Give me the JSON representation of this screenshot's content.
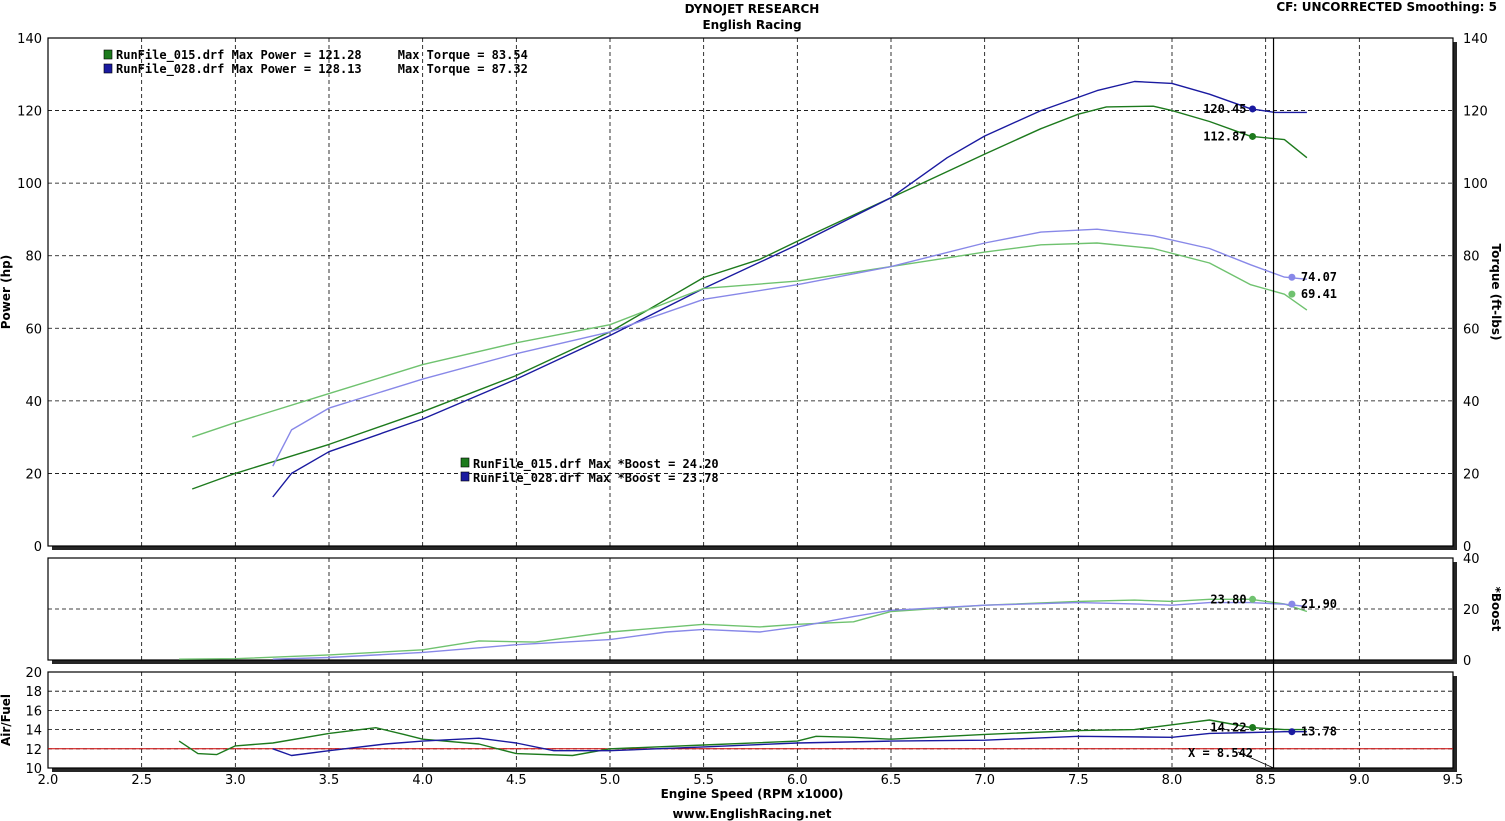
{
  "header": {
    "title": "DYNOJET RESEARCH",
    "subtitle": "English Racing",
    "corner": "CF: UNCORRECTED  Smoothing: 5",
    "footer": "www.EnglishRacing.net"
  },
  "colors": {
    "run015_power": "#1d7a1d",
    "run028_power": "#1a1aa0",
    "run015_torque": "#6fc26f",
    "run028_torque": "#8888e8",
    "afr_reference": "#cc0000"
  },
  "legend": {
    "power_lines": [
      {
        "color_key": "run015_power",
        "text": "RunFile_015.drf Max Power = 121.28     Max Torque = 83.54"
      },
      {
        "color_key": "run028_power",
        "text": "RunFile_028.drf Max Power = 128.13     Max Torque = 87.32"
      }
    ],
    "boost_lines": [
      {
        "color_key": "run015_power",
        "text": "RunFile_015.drf Max *Boost = 24.20"
      },
      {
        "color_key": "run028_power",
        "text": "RunFile_028.drf Max *Boost = 23.78"
      }
    ]
  },
  "cursor": {
    "readout": "X = 8.542"
  },
  "chart_data": [
    {
      "type": "line",
      "panel": "power",
      "xlabel": "Engine Speed (RPM x1000)",
      "ylabel": "Power (hp)",
      "y2label": "Torque (ft-lbs)",
      "xlim": [
        2.0,
        9.5
      ],
      "ylim": [
        0,
        140
      ],
      "x_ticks": [
        "2.0",
        "2.5",
        "3.0",
        "3.5",
        "4.0",
        "4.5",
        "5.0",
        "5.5",
        "6.0",
        "6.5",
        "7.0",
        "7.5",
        "8.0",
        "8.5",
        "9.0",
        "9.5"
      ],
      "y_ticks": [
        "0",
        "20",
        "40",
        "60",
        "80",
        "100",
        "120",
        "140"
      ],
      "y2_ticks": [
        "0",
        "20",
        "40",
        "60",
        "80",
        "100",
        "120",
        "140"
      ],
      "cursor_x": 8.542,
      "grid": true,
      "series": [
        {
          "name": "RunFile_015.drf",
          "measure": "power",
          "color_key": "run015_power",
          "points": [
            [
              2.77,
              15.7
            ],
            [
              3.0,
              20
            ],
            [
              3.5,
              28
            ],
            [
              4.0,
              37
            ],
            [
              4.5,
              47
            ],
            [
              5.0,
              59
            ],
            [
              5.3,
              68
            ],
            [
              5.5,
              74
            ],
            [
              5.8,
              79
            ],
            [
              6.0,
              84
            ],
            [
              6.5,
              96
            ],
            [
              7.0,
              108
            ],
            [
              7.3,
              115
            ],
            [
              7.5,
              119
            ],
            [
              7.65,
              121
            ],
            [
              7.9,
              121.2
            ],
            [
              8.0,
              120
            ],
            [
              8.2,
              117
            ],
            [
              8.42,
              112.9
            ],
            [
              8.6,
              112
            ],
            [
              8.72,
              107
            ]
          ]
        },
        {
          "name": "RunFile_028.drf",
          "measure": "power",
          "color_key": "run028_power",
          "points": [
            [
              3.2,
              13.5
            ],
            [
              3.3,
              20
            ],
            [
              3.5,
              26
            ],
            [
              4.0,
              35
            ],
            [
              4.5,
              46
            ],
            [
              5.0,
              58
            ],
            [
              5.5,
              71
            ],
            [
              6.0,
              83
            ],
            [
              6.5,
              96
            ],
            [
              6.8,
              107
            ],
            [
              7.0,
              113
            ],
            [
              7.3,
              120
            ],
            [
              7.6,
              125.5
            ],
            [
              7.8,
              128
            ],
            [
              8.0,
              127.5
            ],
            [
              8.2,
              124.5
            ],
            [
              8.42,
              120.5
            ],
            [
              8.55,
              119.5
            ],
            [
              8.72,
              119.5
            ]
          ]
        },
        {
          "name": "RunFile_015.drf",
          "measure": "torque",
          "color_key": "run015_torque",
          "points": [
            [
              2.77,
              30
            ],
            [
              3.0,
              34
            ],
            [
              3.5,
              42
            ],
            [
              4.0,
              50
            ],
            [
              4.5,
              56
            ],
            [
              5.0,
              61
            ],
            [
              5.5,
              71
            ],
            [
              6.0,
              73
            ],
            [
              6.5,
              77
            ],
            [
              7.0,
              81
            ],
            [
              7.3,
              83
            ],
            [
              7.6,
              83.5
            ],
            [
              7.9,
              82
            ],
            [
              8.2,
              78
            ],
            [
              8.42,
              72
            ],
            [
              8.6,
              69.4
            ],
            [
              8.72,
              65
            ]
          ]
        },
        {
          "name": "RunFile_028.drf",
          "measure": "torque",
          "color_key": "run028_torque",
          "points": [
            [
              3.2,
              22
            ],
            [
              3.3,
              32
            ],
            [
              3.5,
              38
            ],
            [
              4.0,
              46
            ],
            [
              4.5,
              53
            ],
            [
              5.0,
              59
            ],
            [
              5.5,
              68
            ],
            [
              6.0,
              72
            ],
            [
              6.5,
              77
            ],
            [
              7.0,
              83.5
            ],
            [
              7.3,
              86.5
            ],
            [
              7.6,
              87.3
            ],
            [
              7.9,
              85.5
            ],
            [
              8.2,
              82
            ],
            [
              8.42,
              77.5
            ],
            [
              8.6,
              74.1
            ],
            [
              8.72,
              73.5
            ]
          ]
        }
      ],
      "value_labels": [
        {
          "series": "RunFile_028.drf",
          "measure": "power",
          "x": 8.43,
          "y": 120.45,
          "label": "120.45"
        },
        {
          "series": "RunFile_015.drf",
          "measure": "power",
          "x": 8.43,
          "y": 112.87,
          "label": "112.87"
        },
        {
          "series": "RunFile_028.drf",
          "measure": "torque",
          "x": 8.64,
          "y": 74.07,
          "label": "74.07"
        },
        {
          "series": "RunFile_015.drf",
          "measure": "torque",
          "x": 8.64,
          "y": 69.41,
          "label": "69.41"
        }
      ]
    },
    {
      "type": "line",
      "panel": "boost",
      "ylabel": "*Boost",
      "xlim": [
        2.0,
        9.5
      ],
      "ylim": [
        0,
        40
      ],
      "y2_ticks": [
        "0",
        "20",
        "40"
      ],
      "grid": true,
      "series": [
        {
          "name": "RunFile_015.drf",
          "color_key": "run015_torque",
          "points": [
            [
              2.7,
              0.3
            ],
            [
              3.0,
              0.5
            ],
            [
              3.5,
              2
            ],
            [
              4.0,
              4
            ],
            [
              4.3,
              7.5
            ],
            [
              4.6,
              7
            ],
            [
              5.0,
              11
            ],
            [
              5.5,
              14
            ],
            [
              5.8,
              13
            ],
            [
              6.0,
              14
            ],
            [
              6.3,
              15
            ],
            [
              6.5,
              19
            ],
            [
              7.0,
              21.5
            ],
            [
              7.5,
              23
            ],
            [
              7.8,
              23.5
            ],
            [
              8.0,
              23
            ],
            [
              8.2,
              23.8
            ],
            [
              8.42,
              23.8
            ],
            [
              8.6,
              22
            ],
            [
              8.72,
              19
            ]
          ]
        },
        {
          "name": "RunFile_028.drf",
          "color_key": "run028_torque",
          "points": [
            [
              3.2,
              0.3
            ],
            [
              3.5,
              1
            ],
            [
              4.0,
              3
            ],
            [
              4.5,
              6
            ],
            [
              5.0,
              8
            ],
            [
              5.3,
              11
            ],
            [
              5.5,
              12
            ],
            [
              5.8,
              11
            ],
            [
              6.0,
              13
            ],
            [
              6.3,
              17
            ],
            [
              6.5,
              19.5
            ],
            [
              7.0,
              21.5
            ],
            [
              7.5,
              22.5
            ],
            [
              7.8,
              22
            ],
            [
              8.0,
              21.5
            ],
            [
              8.2,
              22.5
            ],
            [
              8.42,
              22.5
            ],
            [
              8.6,
              21.9
            ],
            [
              8.72,
              21
            ]
          ]
        }
      ],
      "value_labels": [
        {
          "series": "RunFile_015.drf",
          "x": 8.43,
          "y": 23.8,
          "label": "23.80"
        },
        {
          "series": "RunFile_028.drf",
          "x": 8.64,
          "y": 21.9,
          "label": "21.90"
        }
      ]
    },
    {
      "type": "line",
      "panel": "air_fuel",
      "ylabel": "Air/Fuel",
      "xlim": [
        2.0,
        9.5
      ],
      "ylim": [
        10,
        20
      ],
      "y_ticks": [
        "10",
        "12",
        "14",
        "16",
        "18",
        "20"
      ],
      "reference_y": 12,
      "grid": true,
      "series": [
        {
          "name": "RunFile_015.drf",
          "color_key": "run015_power",
          "points": [
            [
              2.7,
              12.8
            ],
            [
              2.8,
              11.5
            ],
            [
              2.9,
              11.4
            ],
            [
              3.0,
              12.3
            ],
            [
              3.2,
              12.6
            ],
            [
              3.5,
              13.6
            ],
            [
              3.75,
              14.2
            ],
            [
              3.9,
              13.5
            ],
            [
              4.0,
              13
            ],
            [
              4.3,
              12.5
            ],
            [
              4.5,
              11.5
            ],
            [
              4.8,
              11.3
            ],
            [
              5.0,
              12
            ],
            [
              5.5,
              12.4
            ],
            [
              6.0,
              12.8
            ],
            [
              6.1,
              13.3
            ],
            [
              6.3,
              13.2
            ],
            [
              6.5,
              13
            ],
            [
              7.0,
              13.5
            ],
            [
              7.5,
              13.9
            ],
            [
              7.8,
              14
            ],
            [
              8.0,
              14.5
            ],
            [
              8.2,
              15
            ],
            [
              8.42,
              14.22
            ],
            [
              8.6,
              14
            ],
            [
              8.72,
              14
            ]
          ]
        },
        {
          "name": "RunFile_028.drf",
          "color_key": "run028_power",
          "points": [
            [
              3.2,
              12
            ],
            [
              3.3,
              11.3
            ],
            [
              3.5,
              11.8
            ],
            [
              3.8,
              12.5
            ],
            [
              4.0,
              12.8
            ],
            [
              4.3,
              13.1
            ],
            [
              4.5,
              12.6
            ],
            [
              4.7,
              11.8
            ],
            [
              5.0,
              11.8
            ],
            [
              5.5,
              12.2
            ],
            [
              6.0,
              12.6
            ],
            [
              6.5,
              12.8
            ],
            [
              7.0,
              12.9
            ],
            [
              7.5,
              13.3
            ],
            [
              8.0,
              13.2
            ],
            [
              8.2,
              13.6
            ],
            [
              8.42,
              13.7
            ],
            [
              8.6,
              13.78
            ],
            [
              8.72,
              13.78
            ]
          ]
        }
      ],
      "value_labels": [
        {
          "series": "RunFile_015.drf",
          "x": 8.43,
          "y": 14.22,
          "label": "14.22"
        },
        {
          "series": "RunFile_028.drf",
          "x": 8.64,
          "y": 13.78,
          "label": "13.78"
        }
      ]
    }
  ]
}
